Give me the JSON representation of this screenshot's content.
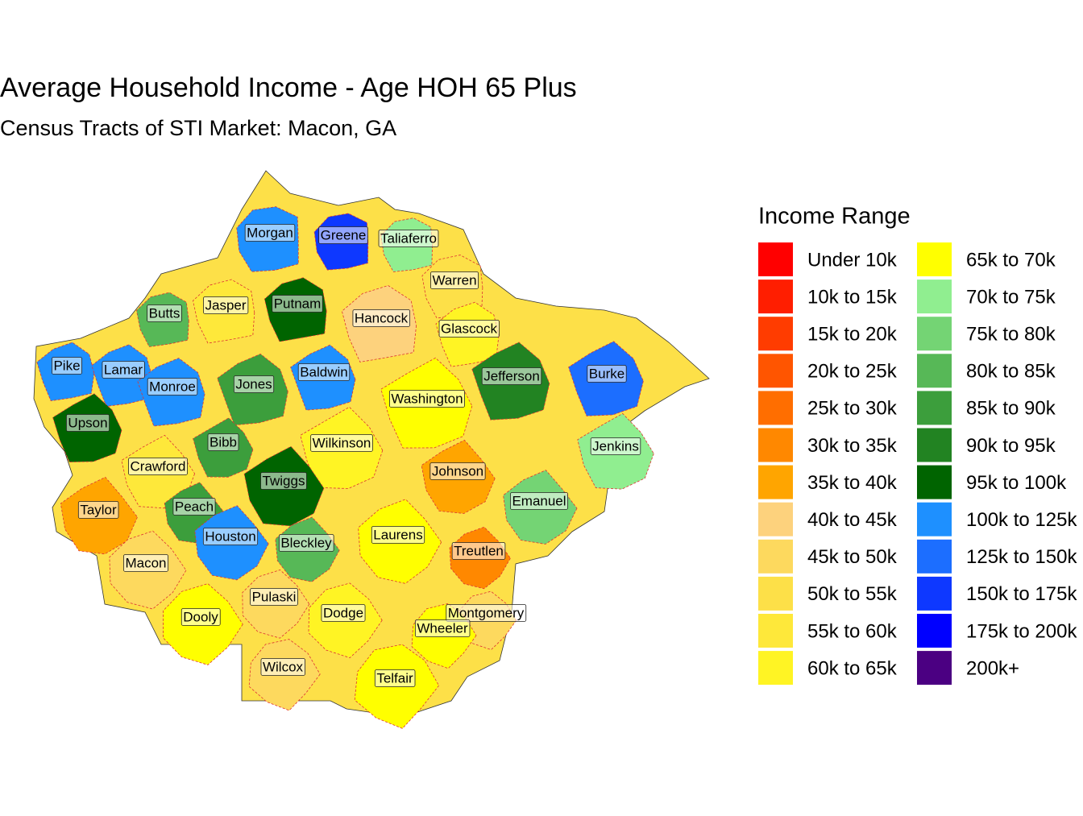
{
  "title": "Average Household Income - Age HOH 65 Plus",
  "subtitle": "Census Tracts of STI Market: Macon, GA",
  "legend": {
    "title": "Income Range",
    "items": [
      {
        "label": "Under 10k",
        "color": "#FF0000"
      },
      {
        "label": "10k to 15k",
        "color": "#FF1E00"
      },
      {
        "label": "15k to 20k",
        "color": "#FF3C00"
      },
      {
        "label": "20k to 25k",
        "color": "#FF5500"
      },
      {
        "label": "25k to 30k",
        "color": "#FF6E00"
      },
      {
        "label": "30k to 35k",
        "color": "#FF8800"
      },
      {
        "label": "35k to 40k",
        "color": "#FFA500"
      },
      {
        "label": "40k to 45k",
        "color": "#FDD27D"
      },
      {
        "label": "45k to 50k",
        "color": "#FDD95E"
      },
      {
        "label": "50k to 55k",
        "color": "#FDE048"
      },
      {
        "label": "55k to 60k",
        "color": "#FEE83A"
      },
      {
        "label": "60k to 65k",
        "color": "#FFF424"
      },
      {
        "label": "65k to 70k",
        "color": "#FFFF00"
      },
      {
        "label": "70k to 75k",
        "color": "#90EE90"
      },
      {
        "label": "75k to 80k",
        "color": "#74D474"
      },
      {
        "label": "80k to 85k",
        "color": "#57B857"
      },
      {
        "label": "85k to 90k",
        "color": "#3C9E3C"
      },
      {
        "label": "90k to 95k",
        "color": "#228322"
      },
      {
        "label": "95k to 100k",
        "color": "#006400"
      },
      {
        "label": "100k to 125k",
        "color": "#1E90FF"
      },
      {
        "label": "125k to 150k",
        "color": "#1C6EFF"
      },
      {
        "label": "150k to 175k",
        "color": "#0E38FF"
      },
      {
        "label": "175k to 200k",
        "color": "#0000FF"
      },
      {
        "label": "200k+",
        "color": "#4B0082"
      }
    ]
  },
  "counties": [
    "Morgan",
    "Greene",
    "Taliaferro",
    "Warren",
    "Butts",
    "Jasper",
    "Putnam",
    "Hancock",
    "Glascock",
    "Pike",
    "Lamar",
    "Monroe",
    "Jones",
    "Baldwin",
    "Jefferson",
    "Burke",
    "Upson",
    "Washington",
    "Bibb",
    "Wilkinson",
    "Jenkins",
    "Crawford",
    "Twiggs",
    "Johnson",
    "Taylor",
    "Peach",
    "Emanuel",
    "Houston",
    "Bleckley",
    "Laurens",
    "Treutlen",
    "Macon",
    "Pulaski",
    "Dooly",
    "Dodge",
    "Montgomery",
    "Wheeler",
    "Wilcox",
    "Telfair"
  ]
}
